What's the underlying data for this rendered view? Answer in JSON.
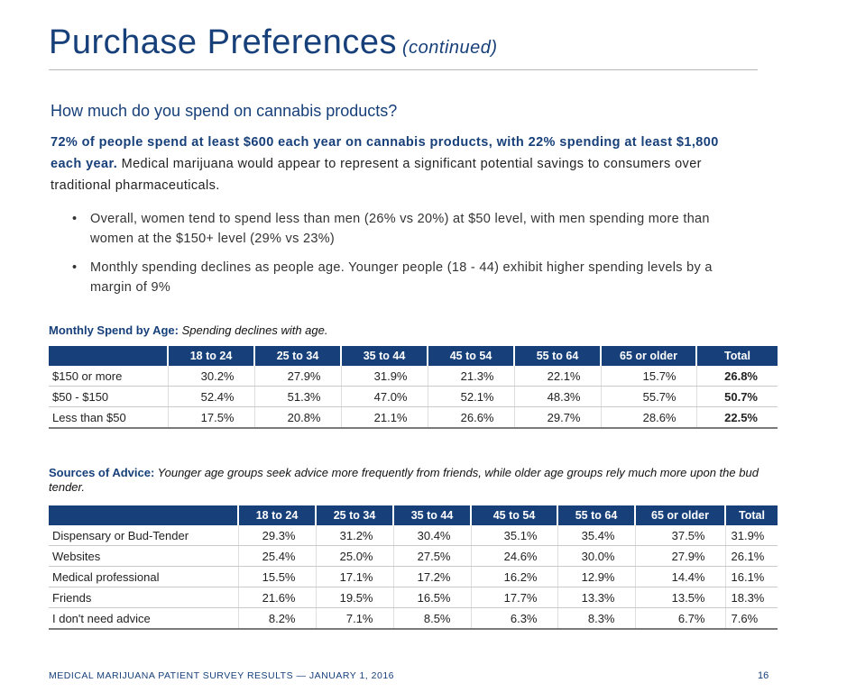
{
  "title": {
    "main": "Purchase Preferences",
    "sub": "(continued)"
  },
  "question": "How much do you spend on cannabis products?",
  "intro": {
    "bold": "72% of people spend at least $600 each year on cannabis products, with 22% spending at least $1,800 each year.",
    "rest": " Medical marijuana would appear to represent a significant potential savings to consumers over traditional pharmaceuticals."
  },
  "bullets": [
    "Overall, women tend to spend less than men (26% vs 20%) at $50 level, with men spending more than women at the $150+ level (29% vs 23%)",
    "Monthly spending declines as people age. Younger people (18 - 44) exhibit higher spending levels by a margin of 9%"
  ],
  "table1": {
    "caption_bold": "Monthly Spend by Age:",
    "caption_italic": " Spending declines with age.",
    "headers": [
      "",
      "18 to 24",
      "25 to 34",
      "35 to 44",
      "45 to 54",
      "55 to 64",
      "65 or older",
      "Total"
    ],
    "rows": [
      {
        "label": "$150 or more",
        "values": [
          "30.2%",
          "27.9%",
          "31.9%",
          "21.3%",
          "22.1%",
          "15.7%",
          "26.8%"
        ]
      },
      {
        "label": "$50 - $150",
        "values": [
          "52.4%",
          "51.3%",
          "47.0%",
          "52.1%",
          "48.3%",
          "55.7%",
          "50.7%"
        ]
      },
      {
        "label": "Less than $50",
        "values": [
          "17.5%",
          "20.8%",
          "21.1%",
          "26.6%",
          "29.7%",
          "28.6%",
          "22.5%"
        ]
      }
    ]
  },
  "table2": {
    "caption_bold": "Sources of Advice:",
    "caption_italic": " Younger age groups seek advice more frequently from friends, while older age groups rely much more upon the bud tender.",
    "headers": [
      "",
      "18 to 24",
      "25 to 34",
      "35 to 44",
      "45 to 54",
      "55 to 64",
      "65 or older",
      "Total"
    ],
    "rows": [
      {
        "label": "Dispensary or Bud-Tender",
        "values": [
          "29.3%",
          "31.2%",
          "30.4%",
          "35.1%",
          "35.4%",
          "37.5%",
          "31.9%"
        ]
      },
      {
        "label": "Websites",
        "values": [
          "25.4%",
          "25.0%",
          "27.5%",
          "24.6%",
          "30.0%",
          "27.9%",
          "26.1%"
        ]
      },
      {
        "label": "Medical professional",
        "values": [
          "15.5%",
          "17.1%",
          "17.2%",
          "16.2%",
          "12.9%",
          "14.4%",
          "16.1%"
        ]
      },
      {
        "label": "Friends",
        "values": [
          "21.6%",
          "19.5%",
          "16.5%",
          "17.7%",
          "13.3%",
          "13.5%",
          "18.3%"
        ]
      },
      {
        "label": "I don't need advice",
        "values": [
          "8.2%",
          "7.1%",
          "8.5%",
          "6.3%",
          "8.3%",
          "6.7%",
          "7.6%"
        ]
      }
    ]
  },
  "footer": {
    "text": "MEDICAL MARIJUANA PATIENT SURVEY RESULTS — JANUARY 1, 2016",
    "page": "16"
  },
  "colors": {
    "brand": "#17407a",
    "text": "#222222",
    "rule": "#b8b8b8"
  }
}
